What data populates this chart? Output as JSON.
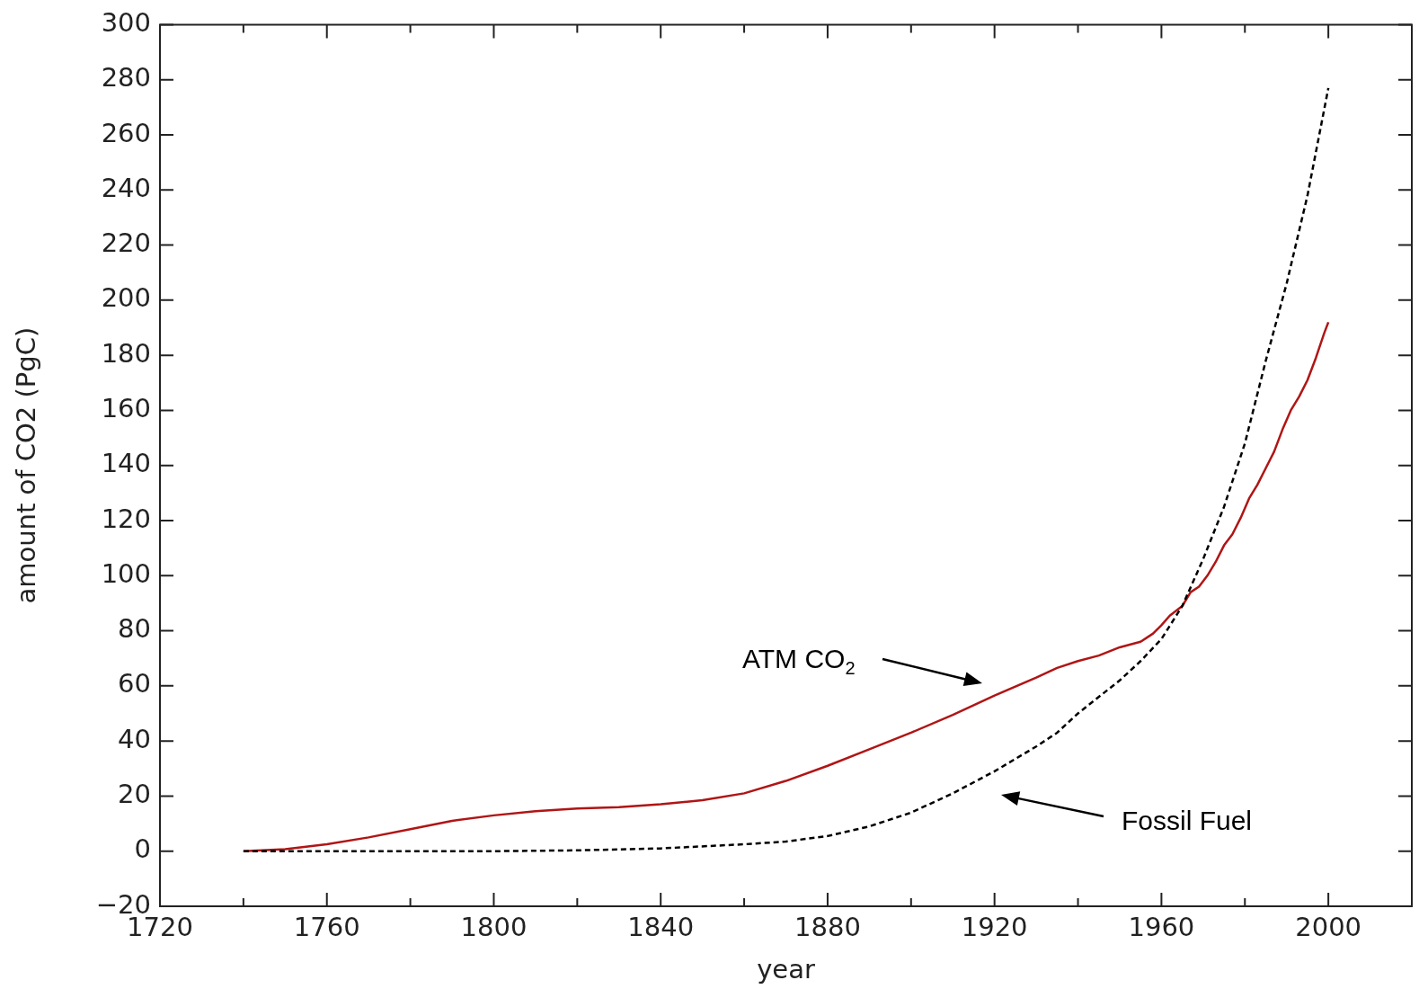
{
  "chart_data": {
    "type": "line",
    "xlabel": "year",
    "ylabel": "amount of CO2 (PgC)",
    "xlim": [
      1720,
      2020
    ],
    "xticks": [
      1720,
      {
        "value": 1740,
        "label": null
      },
      1760,
      {
        "value": 1780,
        "label": null
      },
      1800,
      {
        "value": 1820,
        "label": null
      },
      1840,
      {
        "value": 1860,
        "label": null
      },
      1880,
      {
        "value": 1900,
        "label": null
      },
      1920,
      {
        "value": 1940,
        "label": null
      },
      1960,
      {
        "value": 1980,
        "label": null
      },
      2000,
      {
        "value": 2020,
        "label": null
      }
    ],
    "ylim": [
      -20,
      300
    ],
    "yticks": [
      -20,
      0,
      20,
      40,
      60,
      80,
      100,
      120,
      140,
      160,
      180,
      200,
      220,
      240,
      260,
      280,
      300
    ],
    "grid": false,
    "legend": false,
    "marker": "none",
    "series": [
      {
        "color": "#b01515",
        "line_style": "solid",
        "x": [
          1740,
          1750,
          1760,
          1770,
          1780,
          1790,
          1800,
          1810,
          1820,
          1830,
          1840,
          1850,
          1860,
          1870,
          1880,
          1890,
          1900,
          1910,
          1920,
          1930,
          1935,
          1940,
          1945,
          1950,
          1955,
          1958,
          1960,
          1962,
          1965,
          1967,
          1969,
          1971,
          1973,
          1975,
          1977,
          1979,
          1981,
          1983,
          1985,
          1987,
          1989,
          1991,
          1993,
          1995,
          1997,
          1999,
          2000
        ],
        "values": [
          0,
          0.7,
          2.5,
          5,
          8,
          11,
          13,
          14.5,
          15.5,
          16,
          17,
          18.5,
          21,
          25.5,
          31,
          37,
          43,
          49.5,
          56.5,
          63,
          66.5,
          69,
          71,
          74,
          76,
          79,
          82,
          85.5,
          89,
          94,
          96,
          100,
          105,
          111,
          115,
          121,
          128,
          133,
          139,
          145,
          153,
          160,
          165,
          171,
          179,
          188,
          192
        ]
      },
      {
        "color": "#000000",
        "line_style": "dashed",
        "x": [
          1740,
          1800,
          1820,
          1840,
          1860,
          1870,
          1880,
          1890,
          1900,
          1910,
          1920,
          1930,
          1935,
          1940,
          1950,
          1955,
          1960,
          1965,
          1970,
          1975,
          1980,
          1985,
          1990,
          1995,
          2000
        ],
        "values": [
          0,
          0,
          0.3,
          1,
          2.5,
          3.5,
          5.5,
          9,
          14,
          21,
          29,
          38,
          43,
          50,
          62,
          69,
          77,
          89,
          106,
          125,
          148,
          178,
          206,
          238,
          277
        ]
      }
    ],
    "annotations": [
      "ATM CO$_{2}$",
      "Fossil Fuel"
    ]
  }
}
